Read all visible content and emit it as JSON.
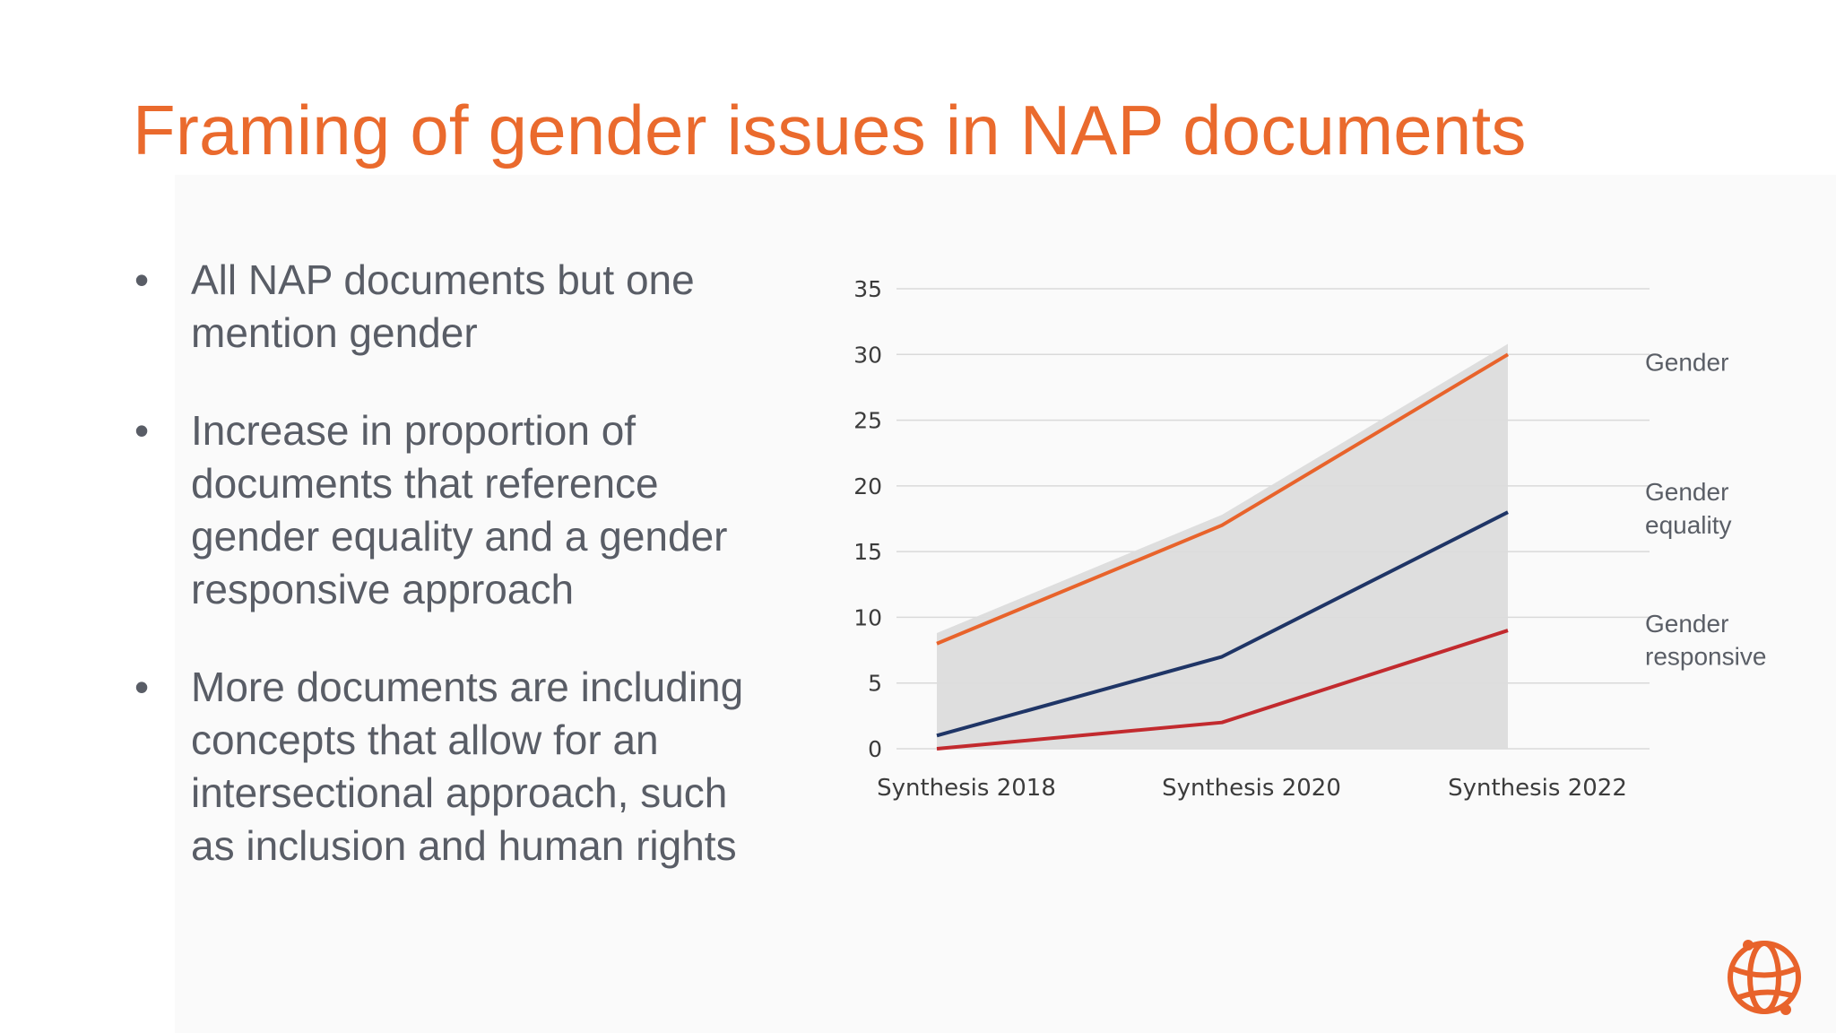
{
  "title": "Framing of gender issues in NAP documents",
  "bullets": [
    {
      "text_lines": [
        "All NAP documents but one",
        "mention gender"
      ]
    },
    {
      "text_lines": [
        "Increase in proportion of",
        "documents that reference",
        "gender equality and a gender",
        "responsive approach"
      ]
    },
    {
      "text_lines": [
        "More documents are including",
        "concepts that allow for an",
        "intersectional approach, such",
        "as inclusion and human rights"
      ]
    }
  ],
  "bullet_char": "•",
  "colors": {
    "title": "#ea6a2d",
    "gender": "#e8632b",
    "gender_equality": "#1f3566",
    "gender_responsive": "#c22a2e",
    "area": "#dcdcdc",
    "grid": "#d9d9d9"
  },
  "logo": {
    "icon": "globe-icon",
    "color": "#e8632b"
  },
  "chart_data": {
    "type": "line",
    "categories": [
      "Synthesis 2018",
      "Synthesis 2020",
      "Synthesis 2022"
    ],
    "series": [
      {
        "name": "Gender",
        "label_lines": [
          "Gender"
        ],
        "values": [
          8,
          17,
          30
        ],
        "color": "#e8632b",
        "key": "gender"
      },
      {
        "name": "Gender equality",
        "label_lines": [
          "Gender",
          "equality"
        ],
        "values": [
          1,
          7,
          18
        ],
        "color": "#1f3566",
        "key": "gender_equality"
      },
      {
        "name": "Gender responsive",
        "label_lines": [
          "Gender",
          "responsive"
        ],
        "values": [
          0,
          2,
          9
        ],
        "color": "#c22a2e",
        "key": "gender_responsive"
      }
    ],
    "shaded_area_under": "Gender",
    "yticks": [
      0,
      5,
      10,
      15,
      20,
      25,
      30,
      35
    ],
    "ylim": [
      0,
      35
    ],
    "grid": true,
    "legend": "right, inline labels"
  }
}
